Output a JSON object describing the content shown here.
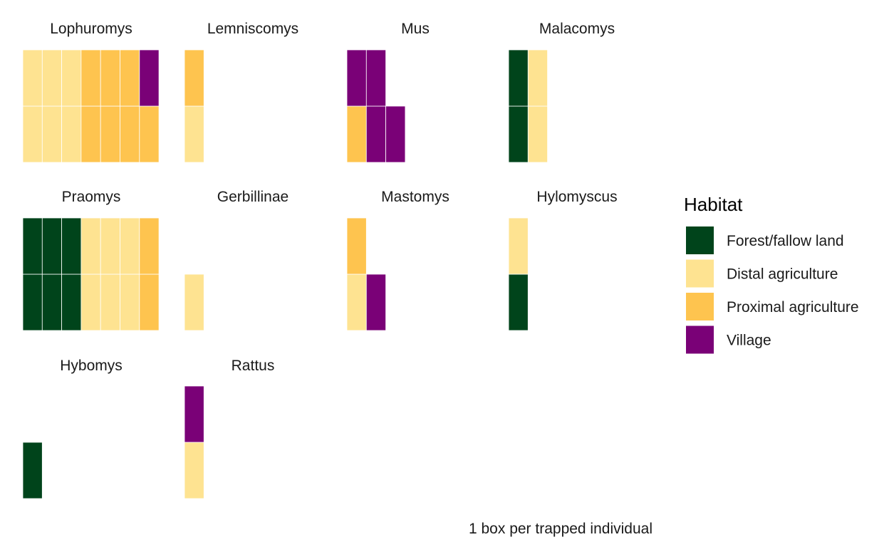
{
  "chart_data": {
    "type": "waffle",
    "caption": "1 box per trapped individual",
    "legend": {
      "title": "Habitat",
      "placement": "right",
      "items": [
        {
          "key": "forest",
          "label": "Forest/fallow land",
          "color": "#00441b"
        },
        {
          "key": "distal",
          "label": "Distal agriculture",
          "color": "#fee391"
        },
        {
          "key": "proximal",
          "label": "Proximal agriculture",
          "color": "#fec44f"
        },
        {
          "key": "village",
          "label": "Village",
          "color": "#7a0177"
        }
      ]
    },
    "panels": [
      {
        "title": "Lophuromys",
        "counts": {
          "forest": 0,
          "distal": 6,
          "proximal": 7,
          "village": 1
        },
        "columns": [
          [
            "distal",
            "distal"
          ],
          [
            "distal",
            "distal"
          ],
          [
            "distal",
            "distal"
          ],
          [
            "proximal",
            "proximal"
          ],
          [
            "proximal",
            "proximal"
          ],
          [
            "proximal",
            "proximal"
          ],
          [
            "proximal",
            "village"
          ]
        ]
      },
      {
        "title": "Lemniscomys",
        "counts": {
          "forest": 0,
          "distal": 1,
          "proximal": 1,
          "village": 0
        },
        "columns": [
          [
            "distal",
            "proximal"
          ]
        ]
      },
      {
        "title": "Mus",
        "counts": {
          "forest": 0,
          "distal": 0,
          "proximal": 1,
          "village": 4
        },
        "columns": [
          [
            "proximal",
            "village"
          ],
          [
            "village",
            "village"
          ],
          [
            "village"
          ]
        ]
      },
      {
        "title": "Malacomys",
        "counts": {
          "forest": 2,
          "distal": 2,
          "proximal": 0,
          "village": 0
        },
        "columns": [
          [
            "forest",
            "forest"
          ],
          [
            "distal",
            "distal"
          ]
        ]
      },
      {
        "title": "Praomys",
        "counts": {
          "forest": 6,
          "distal": 6,
          "proximal": 2,
          "village": 0
        },
        "columns": [
          [
            "forest",
            "forest"
          ],
          [
            "forest",
            "forest"
          ],
          [
            "forest",
            "forest"
          ],
          [
            "distal",
            "distal"
          ],
          [
            "distal",
            "distal"
          ],
          [
            "distal",
            "distal"
          ],
          [
            "proximal",
            "proximal"
          ]
        ]
      },
      {
        "title": "Gerbillinae",
        "counts": {
          "forest": 0,
          "distal": 1,
          "proximal": 0,
          "village": 0
        },
        "columns": [
          [
            "distal"
          ]
        ]
      },
      {
        "title": "Mastomys",
        "counts": {
          "forest": 0,
          "distal": 1,
          "proximal": 1,
          "village": 1
        },
        "columns": [
          [
            "distal",
            "proximal"
          ],
          [
            "village"
          ]
        ]
      },
      {
        "title": "Hylomyscus",
        "counts": {
          "forest": 1,
          "distal": 1,
          "proximal": 0,
          "village": 0
        },
        "columns": [
          [
            "forest",
            "distal"
          ]
        ]
      },
      {
        "title": "Hybomys",
        "counts": {
          "forest": 1,
          "distal": 0,
          "proximal": 0,
          "village": 0
        },
        "columns": [
          [
            "forest"
          ]
        ]
      },
      {
        "title": "Rattus",
        "counts": {
          "forest": 0,
          "distal": 1,
          "proximal": 0,
          "village": 1
        },
        "columns": [
          [
            "distal",
            "village"
          ]
        ]
      }
    ]
  }
}
